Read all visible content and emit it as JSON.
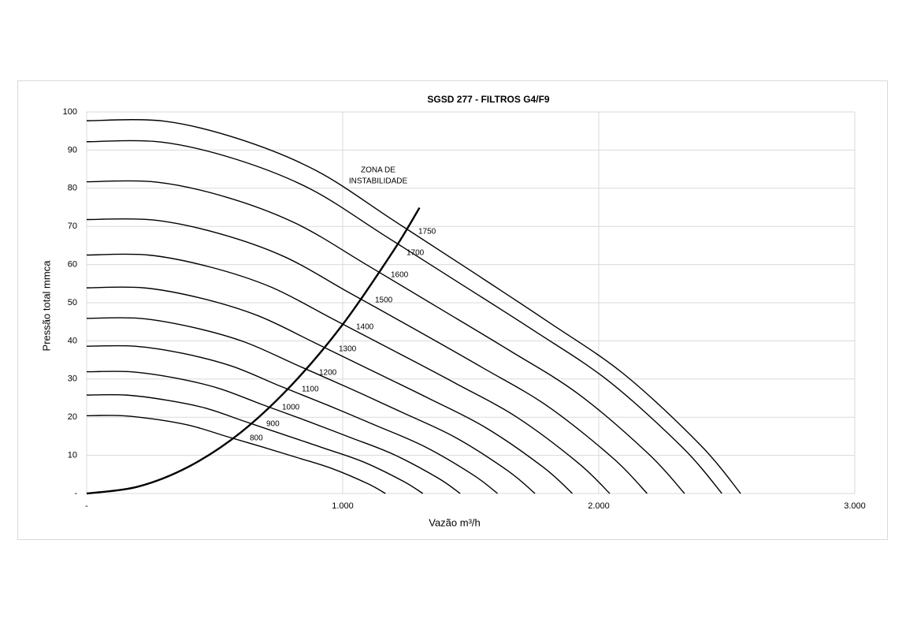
{
  "chart_data": {
    "type": "line",
    "title": "SGSD 277 -  FILTROS G4/F9",
    "x_label": "Vazão m³/h",
    "y_label": "Pressão total mmca",
    "annotation": [
      "ZONA DE",
      "INSTABILIDADE"
    ],
    "xlim": [
      0,
      3000
    ],
    "ylim": [
      0,
      100
    ],
    "xticks": [
      {
        "value": 0,
        "label": "-"
      },
      {
        "value": 1000,
        "label": "1.000"
      },
      {
        "value": 2000,
        "label": "2.000"
      },
      {
        "value": 3000,
        "label": "3.000"
      }
    ],
    "yticks": [
      {
        "value": 0,
        "label": "-"
      },
      10,
      20,
      30,
      40,
      50,
      60,
      70,
      80,
      90,
      100
    ],
    "grid": true,
    "series": [
      {
        "name": "1750",
        "color": "#000000",
        "x": [
          0,
          300,
          600,
          900,
          1200,
          1500,
          1800,
          2100,
          2400,
          2554
        ],
        "values": [
          97.7,
          97.6,
          92.8,
          84.5,
          71.5,
          58.4,
          45.1,
          31.2,
          12.5,
          0
        ]
      },
      {
        "name": "1700",
        "color": "#000000",
        "x": [
          0,
          291,
          583,
          874,
          1166,
          1457,
          1749,
          2040,
          2331,
          2481
        ],
        "values": [
          92.2,
          92.1,
          87.6,
          79.8,
          67.5,
          55.1,
          42.6,
          29.4,
          11.8,
          0
        ]
      },
      {
        "name": "1600",
        "color": "#000000",
        "x": [
          0,
          274,
          549,
          823,
          1097,
          1371,
          1646,
          1920,
          2194,
          2335
        ],
        "values": [
          81.7,
          81.6,
          77.6,
          70.6,
          59.8,
          48.8,
          37.7,
          26.1,
          10.4,
          0
        ]
      },
      {
        "name": "1500",
        "color": "#000000",
        "x": [
          0,
          257,
          514,
          771,
          1029,
          1286,
          1543,
          1800,
          2057,
          2189
        ],
        "values": [
          71.8,
          71.7,
          68.2,
          62.1,
          52.5,
          42.9,
          33.1,
          22.9,
          9.2,
          0
        ]
      },
      {
        "name": "1400",
        "color": "#000000",
        "x": [
          0,
          240,
          480,
          720,
          960,
          1200,
          1440,
          1680,
          1920,
          2043
        ],
        "values": [
          62.5,
          62.5,
          59.4,
          54.1,
          45.8,
          37.4,
          28.9,
          20.0,
          8.0,
          0
        ]
      },
      {
        "name": "1300",
        "color": "#000000",
        "x": [
          0,
          223,
          446,
          669,
          891,
          1114,
          1337,
          1560,
          1783,
          1897
        ],
        "values": [
          53.9,
          53.9,
          51.2,
          46.6,
          39.5,
          32.2,
          24.9,
          17.2,
          6.9,
          0
        ]
      },
      {
        "name": "1200",
        "color": "#000000",
        "x": [
          0,
          206,
          411,
          617,
          823,
          1029,
          1234,
          1440,
          1646,
          1751
        ],
        "values": [
          45.9,
          45.9,
          43.6,
          39.7,
          33.6,
          27.5,
          21.2,
          14.7,
          5.9,
          0
        ]
      },
      {
        "name": "1100",
        "color": "#000000",
        "x": [
          0,
          189,
          377,
          566,
          754,
          943,
          1131,
          1320,
          1509,
          1605
        ],
        "values": [
          38.6,
          38.6,
          36.7,
          33.4,
          28.2,
          23.1,
          17.8,
          12.3,
          4.9,
          0
        ]
      },
      {
        "name": "1000",
        "color": "#000000",
        "x": [
          0,
          171,
          343,
          514,
          686,
          857,
          1029,
          1200,
          1371,
          1459
        ],
        "values": [
          31.9,
          31.9,
          30.3,
          27.6,
          23.3,
          19.1,
          14.7,
          10.2,
          4.1,
          0
        ]
      },
      {
        "name": "900",
        "color": "#000000",
        "x": [
          0,
          154,
          309,
          463,
          617,
          771,
          926,
          1080,
          1234,
          1313
        ],
        "values": [
          25.8,
          25.8,
          24.5,
          22.4,
          18.9,
          15.4,
          11.9,
          8.3,
          3.3,
          0
        ]
      },
      {
        "name": "800",
        "color": "#000000",
        "x": [
          0,
          137,
          274,
          411,
          549,
          686,
          823,
          960,
          1097,
          1167
        ],
        "values": [
          20.4,
          20.4,
          19.4,
          17.7,
          14.9,
          12.2,
          9.4,
          6.5,
          2.6,
          0
        ]
      }
    ],
    "instability": {
      "color": "#000000",
      "x": [
        0,
        200,
        400,
        600,
        800,
        1000,
        1200,
        1300
      ],
      "values": [
        0,
        1.8,
        7.1,
        15.9,
        28.4,
        44.3,
        63.8,
        74.9
      ]
    }
  }
}
